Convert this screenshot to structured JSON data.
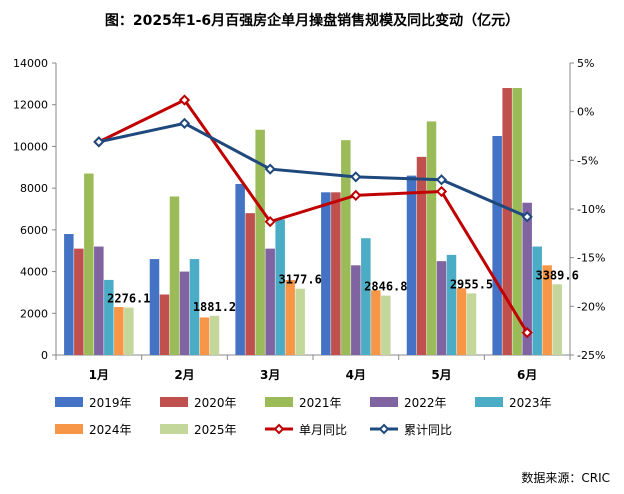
{
  "chart_data": {
    "type": "bar",
    "title": "图：2025年1-6月百强房企单月操盘销售规模及同比变动（亿元）",
    "categories": [
      "1月",
      "2月",
      "3月",
      "4月",
      "5月",
      "6月"
    ],
    "y_left": {
      "min": 0,
      "max": 14000,
      "ticks": [
        "0",
        "2000",
        "4000",
        "6000",
        "8000",
        "10000",
        "12000",
        "14000"
      ]
    },
    "y_right": {
      "min": -25,
      "max": 5,
      "ticks": [
        "5%",
        "0%",
        "-5%",
        "-10%",
        "-15%",
        "-20%",
        "-25%"
      ]
    },
    "series": [
      {
        "name": "2019年",
        "color": "#4472C4",
        "values": [
          5800,
          4600,
          8200,
          7800,
          8600,
          10500
        ]
      },
      {
        "name": "2020年",
        "color": "#C0504D",
        "values": [
          5100,
          2900,
          6800,
          7800,
          9500,
          12800
        ]
      },
      {
        "name": "2021年",
        "color": "#9BBB59",
        "values": [
          8700,
          7600,
          10800,
          10300,
          11200,
          12800
        ]
      },
      {
        "name": "2022年",
        "color": "#8064A2",
        "values": [
          5200,
          4000,
          5100,
          4300,
          4500,
          7300
        ]
      },
      {
        "name": "2023年",
        "color": "#4BACC6",
        "values": [
          3600,
          4600,
          6500,
          5600,
          4800,
          5200
        ]
      },
      {
        "name": "2024年",
        "color": "#F79646",
        "values": [
          2300,
          1800,
          3600,
          3100,
          3200,
          4300
        ]
      },
      {
        "name": "2025年",
        "color": "#C4D79B",
        "values": [
          2276.1,
          1881.2,
          3177.6,
          2846.8,
          2955.5,
          3389.6
        ]
      }
    ],
    "lines": [
      {
        "name": "单月同比",
        "color": "#C00000",
        "values": [
          -3.1,
          1.2,
          -11.3,
          -8.6,
          -8.2,
          -22.7
        ]
      },
      {
        "name": "累计同比",
        "color": "#1F497D",
        "values": [
          -3.1,
          -1.2,
          -5.9,
          -6.7,
          -7.0,
          -10.8
        ]
      }
    ],
    "data_labels": [
      "2276.1",
      "1881.2",
      "3177.6",
      "2846.8",
      "2955.5",
      "3389.6"
    ]
  },
  "source": "数据来源：CRIC"
}
